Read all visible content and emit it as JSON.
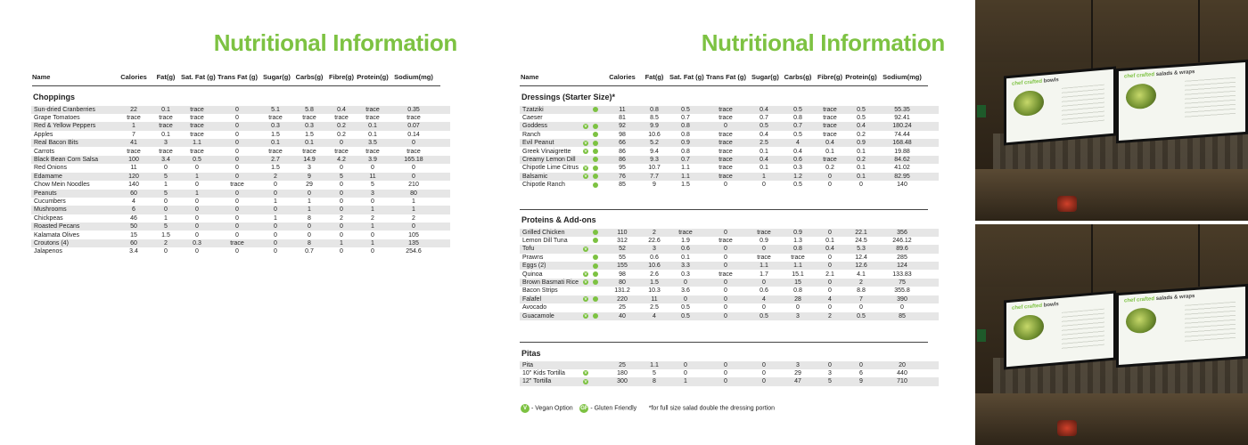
{
  "title": "Nutritional Information",
  "columns": [
    "Name",
    "Calories",
    "Fat(g)",
    "Sat. Fat (g)",
    "Trans Fat (g)",
    "Sugar(g)",
    "Carbs(g)",
    "Fibre(g)",
    "Protein(g)",
    "Sodium(mg)"
  ],
  "left": {
    "sections": [
      {
        "title": "Choppings",
        "rows": [
          {
            "name": "Sun-dried Cranberries",
            "v": [
              "22",
              "0.1",
              "trace",
              "0",
              "5.1",
              "5.8",
              "0.4",
              "trace",
              "0.35"
            ]
          },
          {
            "name": "Grape Tomatoes",
            "v": [
              "trace",
              "trace",
              "trace",
              "0",
              "trace",
              "trace",
              "trace",
              "trace",
              "trace"
            ]
          },
          {
            "name": "Red & Yellow Peppers",
            "v": [
              "1",
              "trace",
              "trace",
              "0",
              "0.3",
              "0.3",
              "0.2",
              "0.1",
              "0.07"
            ]
          },
          {
            "name": "Apples",
            "v": [
              "7",
              "0.1",
              "trace",
              "0",
              "1.5",
              "1.5",
              "0.2",
              "0.1",
              "0.14"
            ]
          },
          {
            "name": "Real Bacon Bits",
            "v": [
              "41",
              "3",
              "1.1",
              "0",
              "0.1",
              "0.1",
              "0",
              "3.5",
              "0"
            ]
          },
          {
            "name": "Carrots",
            "v": [
              "trace",
              "trace",
              "trace",
              "0",
              "trace",
              "trace",
              "trace",
              "trace",
              "trace"
            ]
          },
          {
            "name": "Black Bean Corn Salsa",
            "v": [
              "100",
              "3.4",
              "0.5",
              "0",
              "2.7",
              "14.9",
              "4.2",
              "3.9",
              "165.18"
            ]
          },
          {
            "name": "Red Onions",
            "v": [
              "11",
              "0",
              "0",
              "0",
              "1.5",
              "3",
              "0",
              "0",
              "0"
            ]
          },
          {
            "name": "Edamame",
            "v": [
              "120",
              "5",
              "1",
              "0",
              "2",
              "9",
              "5",
              "11",
              "0"
            ]
          },
          {
            "name": "Chow Mein Noodles",
            "v": [
              "140",
              "1",
              "0",
              "trace",
              "0",
              "29",
              "0",
              "5",
              "210"
            ]
          },
          {
            "name": "Peanuts",
            "v": [
              "60",
              "5",
              "1",
              "0",
              "0",
              "0",
              "0",
              "3",
              "80"
            ]
          },
          {
            "name": "Cucumbers",
            "v": [
              "4",
              "0",
              "0",
              "0",
              "1",
              "1",
              "0",
              "0",
              "1"
            ]
          },
          {
            "name": "Mushrooms",
            "v": [
              "6",
              "0",
              "0",
              "0",
              "0",
              "1",
              "0",
              "1",
              "1"
            ]
          },
          {
            "name": "Chickpeas",
            "v": [
              "46",
              "1",
              "0",
              "0",
              "1",
              "8",
              "2",
              "2",
              "2"
            ]
          },
          {
            "name": "Roasted Pecans",
            "v": [
              "50",
              "5",
              "0",
              "0",
              "0",
              "0",
              "0",
              "1",
              "0"
            ]
          },
          {
            "name": "Kalamata Olives",
            "v": [
              "15",
              "1.5",
              "0",
              "0",
              "0",
              "0",
              "0",
              "0",
              "105"
            ]
          },
          {
            "name": "Croutons (4)",
            "v": [
              "60",
              "2",
              "0.3",
              "trace",
              "0",
              "8",
              "1",
              "1",
              "135"
            ]
          },
          {
            "name": "Jalapenos",
            "v": [
              "3.4",
              "0",
              "0",
              "0",
              "0",
              "0.7",
              "0",
              "0",
              "254.6"
            ]
          }
        ]
      }
    ]
  },
  "right": {
    "sections": [
      {
        "title": "Dressings (Starter Size)*",
        "rows": [
          {
            "name": "Tzatziki",
            "vegan": false,
            "gf": true,
            "v": [
              "11",
              "0.8",
              "0.5",
              "trace",
              "0.4",
              "0.5",
              "trace",
              "0.5",
              "55.35"
            ]
          },
          {
            "name": "Caeser",
            "vegan": false,
            "gf": false,
            "v": [
              "81",
              "8.5",
              "0.7",
              "trace",
              "0.7",
              "0.8",
              "trace",
              "0.5",
              "92.41"
            ]
          },
          {
            "name": "Goddess",
            "vegan": true,
            "gf": true,
            "v": [
              "92",
              "9.9",
              "0.8",
              "0",
              "0.5",
              "0.7",
              "trace",
              "0.4",
              "180.24"
            ]
          },
          {
            "name": "Ranch",
            "vegan": false,
            "gf": true,
            "v": [
              "98",
              "10.6",
              "0.8",
              "trace",
              "0.4",
              "0.5",
              "trace",
              "0.2",
              "74.44"
            ]
          },
          {
            "name": "Evil Peanut",
            "vegan": true,
            "gf": true,
            "v": [
              "66",
              "5.2",
              "0.9",
              "trace",
              "2.5",
              "4",
              "0.4",
              "0.9",
              "168.48"
            ]
          },
          {
            "name": "Greek Vinaigrette",
            "vegan": true,
            "gf": true,
            "v": [
              "86",
              "9.4",
              "0.8",
              "trace",
              "0.1",
              "0.4",
              "0.1",
              "0.1",
              "19.88"
            ]
          },
          {
            "name": "Creamy Lemon Dill",
            "vegan": false,
            "gf": true,
            "v": [
              "86",
              "9.3",
              "0.7",
              "trace",
              "0.4",
              "0.6",
              "trace",
              "0.2",
              "84.62"
            ]
          },
          {
            "name": "Chipotle Lime Citrus",
            "vegan": true,
            "gf": true,
            "v": [
              "95",
              "10.7",
              "1.1",
              "trace",
              "0.1",
              "0.3",
              "0.2",
              "0.1",
              "41.02"
            ]
          },
          {
            "name": "Balsamic",
            "vegan": true,
            "gf": true,
            "v": [
              "76",
              "7.7",
              "1.1",
              "trace",
              "1",
              "1.2",
              "0",
              "0.1",
              "82.95"
            ]
          },
          {
            "name": "Chipotle Ranch",
            "vegan": false,
            "gf": true,
            "v": [
              "85",
              "9",
              "1.5",
              "0",
              "0",
              "0.5",
              "0",
              "0",
              "140"
            ]
          }
        ]
      },
      {
        "title": "Proteins & Add-ons",
        "rows": [
          {
            "name": "Grilled Chicken",
            "vegan": false,
            "gf": true,
            "v": [
              "110",
              "2",
              "trace",
              "0",
              "trace",
              "0.9",
              "0",
              "22.1",
              "356"
            ]
          },
          {
            "name": "Lemon Dill Tuna",
            "vegan": false,
            "gf": true,
            "v": [
              "312",
              "22.6",
              "1.9",
              "trace",
              "0.9",
              "1.3",
              "0.1",
              "24.5",
              "246.12"
            ]
          },
          {
            "name": "Tofu",
            "vegan": true,
            "gf": false,
            "v": [
              "52",
              "3",
              "0.6",
              "0",
              "0",
              "0.8",
              "0.4",
              "5.3",
              "89.6"
            ]
          },
          {
            "name": "Prawns",
            "vegan": false,
            "gf": true,
            "v": [
              "55",
              "0.6",
              "0.1",
              "0",
              "trace",
              "trace",
              "0",
              "12.4",
              "285"
            ]
          },
          {
            "name": "Eggs (2)",
            "vegan": false,
            "gf": true,
            "v": [
              "155",
              "10.6",
              "3.3",
              "0",
              "1.1",
              "1.1",
              "0",
              "12.6",
              "124"
            ]
          },
          {
            "name": "Quinoa",
            "vegan": true,
            "gf": true,
            "v": [
              "98",
              "2.6",
              "0.3",
              "trace",
              "1.7",
              "15.1",
              "2.1",
              "4.1",
              "133.83"
            ]
          },
          {
            "name": "Brown Basmati Rice",
            "vegan": true,
            "gf": true,
            "v": [
              "80",
              "1.5",
              "0",
              "0",
              "0",
              "15",
              "0",
              "2",
              "75"
            ]
          },
          {
            "name": "Bacon Strips",
            "vegan": false,
            "gf": false,
            "v": [
              "131.2",
              "10.3",
              "3.6",
              "0",
              "0.6",
              "0.8",
              "0",
              "8.8",
              "355.8"
            ]
          },
          {
            "name": "Falafel",
            "vegan": true,
            "gf": true,
            "v": [
              "220",
              "11",
              "0",
              "0",
              "4",
              "28",
              "4",
              "7",
              "390"
            ]
          },
          {
            "name": "Avocado",
            "vegan": false,
            "gf": false,
            "v": [
              "25",
              "2.5",
              "0.5",
              "0",
              "0",
              "0",
              "0",
              "0",
              "0"
            ]
          },
          {
            "name": "Guacamole",
            "vegan": true,
            "gf": true,
            "v": [
              "40",
              "4",
              "0.5",
              "0",
              "0.5",
              "3",
              "2",
              "0.5",
              "85"
            ]
          }
        ]
      },
      {
        "title": "Pitas",
        "rows": [
          {
            "name": "Pita",
            "vegan": false,
            "gf": false,
            "v": [
              "25",
              "1.1",
              "0",
              "0",
              "0",
              "3",
              "0",
              "0",
              "20"
            ]
          },
          {
            "name": "10\" Kids Tortilla",
            "vegan": true,
            "gf": false,
            "v": [
              "180",
              "5",
              "0",
              "0",
              "0",
              "29",
              "3",
              "6",
              "440"
            ]
          },
          {
            "name": "12\" Tortilla",
            "vegan": true,
            "gf": false,
            "v": [
              "300",
              "8",
              "1",
              "0",
              "0",
              "47",
              "5",
              "9",
              "710"
            ]
          }
        ]
      }
    ],
    "legend": {
      "vegan_symbol": "V",
      "vegan_label": "- Vegan Option",
      "gf_symbol": "GF",
      "gf_label": "- Gluten Friendly",
      "footnote": "*for full size salad double the dressing portion"
    }
  },
  "photos": {
    "screen_left_title_a": "chef crafted",
    "screen_left_title_b": "bowls",
    "screen_right_title_a": "chef crafted",
    "screen_right_title_b": "salads & wraps"
  },
  "colors": {
    "accent": "#7dc242",
    "row_shade": "#e6e6e6",
    "text": "#222222"
  }
}
